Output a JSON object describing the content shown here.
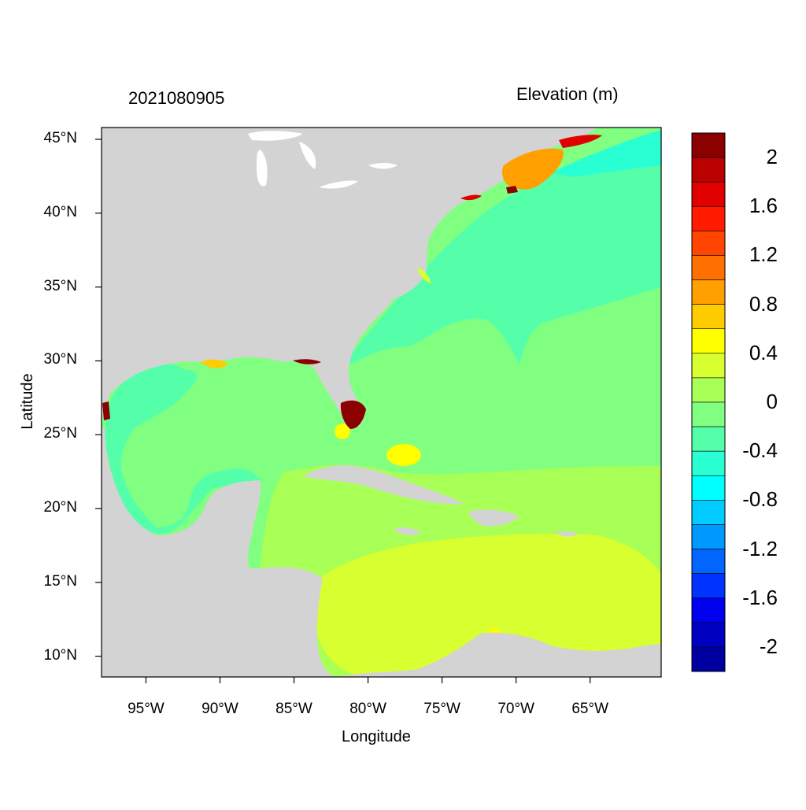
{
  "map": {
    "timestamp": "2021080905",
    "colorbar_title": "Elevation (m)",
    "xlabel": "Longitude",
    "ylabel": "Latitude",
    "lon_range": [
      -98,
      -60.2
    ],
    "lat_range": [
      8.6,
      45.8
    ],
    "x_ticks": [
      {
        "value": -95,
        "label": "95°W"
      },
      {
        "value": -90,
        "label": "90°W"
      },
      {
        "value": -85,
        "label": "85°W"
      },
      {
        "value": -80,
        "label": "80°W"
      },
      {
        "value": -75,
        "label": "75°W"
      },
      {
        "value": -70,
        "label": "70°W"
      },
      {
        "value": -65,
        "label": "65°W"
      }
    ],
    "y_ticks": [
      {
        "value": 45,
        "label": "45°N"
      },
      {
        "value": 40,
        "label": "40°N"
      },
      {
        "value": 35,
        "label": "35°N"
      },
      {
        "value": 30,
        "label": "30°N"
      },
      {
        "value": 25,
        "label": "25°N"
      },
      {
        "value": 20,
        "label": "20°N"
      },
      {
        "value": 15,
        "label": "15°N"
      },
      {
        "value": 10,
        "label": "10°N"
      }
    ],
    "colors": {
      "land": "#d3d3d3",
      "frame": "#000000"
    },
    "colorbar": {
      "colors": [
        "#8b0000",
        "#bb0000",
        "#e00000",
        "#ff1a00",
        "#ff4500",
        "#ff7000",
        "#ff9f00",
        "#ffcc00",
        "#ffff00",
        "#d8ff30",
        "#a8ff55",
        "#80ff80",
        "#55ffaa",
        "#2affd4",
        "#00ffff",
        "#00ccff",
        "#0099ff",
        "#0066ff",
        "#0033ff",
        "#0000ee",
        "#0000c0",
        "#0000a0"
      ],
      "labels": [
        "2",
        "1.6",
        "1.2",
        "0.8",
        "0.4",
        "0",
        "-0.4",
        "-0.8",
        "-1.2",
        "-1.6",
        "-2"
      ]
    },
    "legend_placement": "right"
  }
}
